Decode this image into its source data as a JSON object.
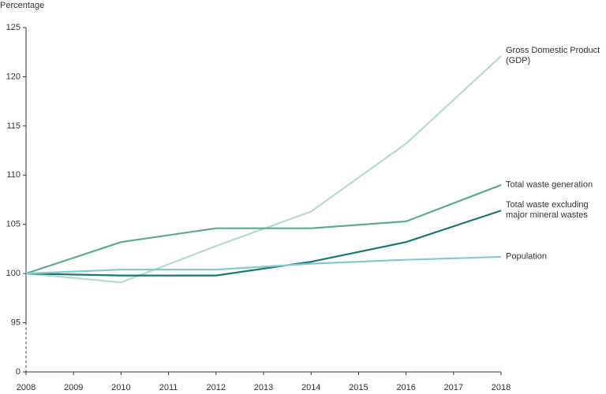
{
  "chart_data": {
    "type": "line",
    "y_label": "Percentage",
    "x": [
      2008,
      2010,
      2012,
      2014,
      2016,
      2018
    ],
    "xlim": [
      2008,
      2018
    ],
    "xticks": [
      2008,
      2009,
      2010,
      2011,
      2012,
      2013,
      2014,
      2015,
      2016,
      2017,
      2018
    ],
    "ylim": [
      0,
      125
    ],
    "yticks": [
      0,
      95,
      100,
      105,
      110,
      115,
      120,
      125
    ],
    "grid": false,
    "series": [
      {
        "name": "Gross Domestic Product (GDP)",
        "color": "#b3dccf",
        "values": [
          100,
          99.1,
          102.8,
          106.3,
          113.2,
          122.1
        ]
      },
      {
        "name": "Total waste generation",
        "color": "#5aa898",
        "values": [
          100,
          103.2,
          104.6,
          104.6,
          105.3,
          109.0
        ]
      },
      {
        "name": "Total waste excluding major mineral wastes",
        "color": "#157a6e",
        "values": [
          100,
          99.8,
          99.8,
          101.2,
          103.2,
          106.4
        ]
      },
      {
        "name": "Population",
        "color": "#86c7d3",
        "values": [
          100,
          100.4,
          100.4,
          101.0,
          101.4,
          101.7
        ]
      }
    ]
  }
}
